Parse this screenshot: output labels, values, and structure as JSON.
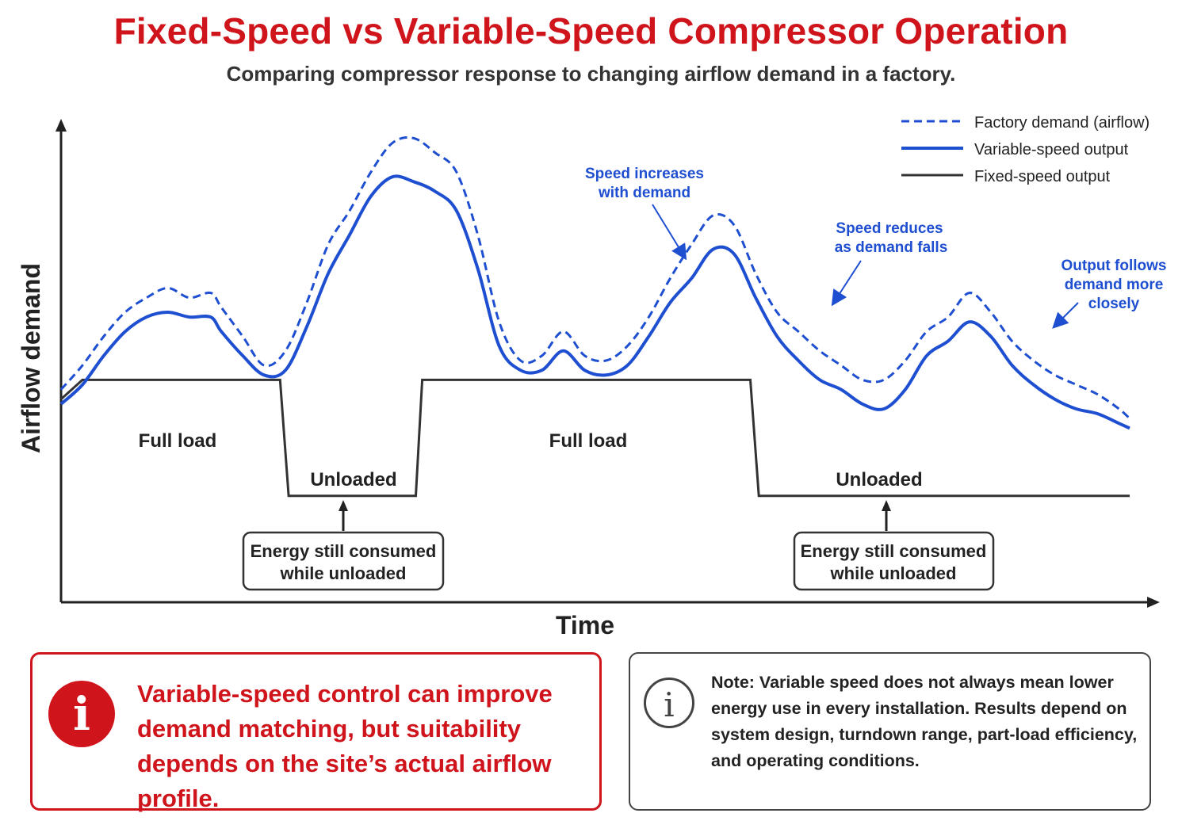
{
  "title": "Fixed-Speed vs Variable-Speed Compressor Operation",
  "subtitle": "Comparing compressor response to changing airflow demand in a factory.",
  "chart_data": {
    "type": "line",
    "xlabel": "Time",
    "ylabel": "Airflow demand",
    "xlim": [
      0,
      100
    ],
    "ylim": [
      0,
      100
    ],
    "grid": false,
    "legend_position": "top-right",
    "series": [
      {
        "name": "Factory demand (airflow)",
        "style": "dashed",
        "color": "#1f4fd1",
        "x": [
          0,
          2,
          4,
          6,
          8,
          10,
          12,
          14,
          15,
          17,
          19,
          21,
          23,
          25,
          27,
          29,
          31,
          33,
          35,
          37,
          39,
          41,
          43,
          45,
          47,
          49,
          51,
          53,
          55,
          57,
          59,
          61,
          63,
          65,
          67,
          69,
          71,
          73,
          75,
          77,
          79,
          81,
          83,
          85,
          87,
          89,
          91,
          93,
          95,
          97,
          99,
          100
        ],
        "values": [
          44,
          49,
          55,
          60,
          63,
          65,
          63,
          64,
          61,
          55,
          49,
          52,
          62,
          74,
          81,
          89,
          95,
          96,
          93,
          89,
          76,
          58,
          50,
          51,
          56,
          51,
          50,
          53,
          59,
          67,
          74,
          80,
          78,
          68,
          60,
          56,
          52,
          49,
          46,
          46,
          50,
          56,
          59,
          64,
          60,
          54,
          50,
          47,
          45,
          43,
          40,
          38
        ]
      },
      {
        "name": "Variable-speed output",
        "style": "solid",
        "color": "#1f4fd1",
        "x": [
          0,
          2,
          4,
          6,
          8,
          10,
          12,
          14,
          15,
          17,
          19,
          21,
          23,
          25,
          27,
          29,
          31,
          33,
          35,
          37,
          39,
          41,
          43,
          45,
          47,
          49,
          51,
          53,
          55,
          57,
          59,
          61,
          63,
          65,
          67,
          69,
          71,
          73,
          75,
          77,
          79,
          81,
          83,
          85,
          87,
          89,
          91,
          93,
          95,
          97,
          99,
          100
        ],
        "values": [
          41,
          45,
          51,
          56,
          59,
          60,
          59,
          59,
          56,
          51,
          47,
          48,
          57,
          68,
          76,
          84,
          88,
          87,
          85,
          81,
          69,
          53,
          48,
          48,
          52,
          48,
          47,
          49,
          55,
          62,
          67,
          73,
          72,
          63,
          55,
          50,
          46,
          44,
          41,
          40,
          44,
          51,
          54,
          58,
          55,
          49,
          45,
          42,
          40,
          39,
          37,
          36
        ]
      },
      {
        "name": "Fixed-speed output",
        "style": "solid",
        "color": "#333333",
        "x": [
          0,
          2,
          20.5,
          21.3,
          33.2,
          33.8,
          64.5,
          65.3,
          100
        ],
        "values": [
          42,
          46,
          46,
          22,
          22,
          46,
          46,
          22,
          22
        ]
      }
    ],
    "annotations": [
      {
        "text": "Full load",
        "x": 11,
        "y": 37
      },
      {
        "text": "Unloaded",
        "x": 27,
        "y": 25
      },
      {
        "text": "Full load",
        "x": 49,
        "y": 37
      },
      {
        "text": "Unloaded",
        "x": 76,
        "y": 25
      },
      {
        "text": "Speed increases\nwith demand",
        "x": 56,
        "y": 85,
        "arrow_to": [
          60,
          71
        ]
      },
      {
        "text": "Speed reduces\nas demand falls",
        "x": 77,
        "y": 73,
        "arrow_to": [
          72,
          62
        ]
      },
      {
        "text": "Output follows\ndemand more\nclosely",
        "x": 96,
        "y": 65,
        "arrow_to": [
          92,
          56
        ]
      }
    ],
    "boxes": [
      {
        "text": "Energy still consumed\nwhile unloaded",
        "points_to": "Unloaded",
        "x": 26
      },
      {
        "text": "Energy still consumed\nwhile unloaded",
        "points_to": "Unloaded",
        "x": 77
      }
    ]
  },
  "legend": {
    "demand": "Factory demand (airflow)",
    "variable": "Variable-speed output",
    "fixed": "Fixed-speed output"
  },
  "annotation_text": {
    "full_load_1": "Full load",
    "unloaded_1": "Unloaded",
    "full_load_2": "Full load",
    "unloaded_2": "Unloaded",
    "speed_increases_1": "Speed increases",
    "speed_increases_2": "with demand",
    "speed_reduces_1": "Speed reduces",
    "speed_reduces_2": "as demand falls",
    "output_follows_1": "Output follows",
    "output_follows_2": "demand more",
    "output_follows_3": "closely",
    "energy_line1": "Energy still consumed",
    "energy_line2": "while unloaded"
  },
  "callouts": {
    "red_icon": "i",
    "red_text": "Variable-speed control can improve demand matching, but suitability depends on the site’s actual airflow profile.",
    "gray_icon": "i",
    "gray_text": "Note: Variable speed does not always mean lower energy use in every installation. Results depend on system design, turndown range, part-load efficiency, and operating conditions."
  },
  "colors": {
    "title_red": "#d0141c",
    "series_blue": "#1f4fd1",
    "fixed_dark": "#333333",
    "annotation_blue": "#1f4fd1"
  }
}
